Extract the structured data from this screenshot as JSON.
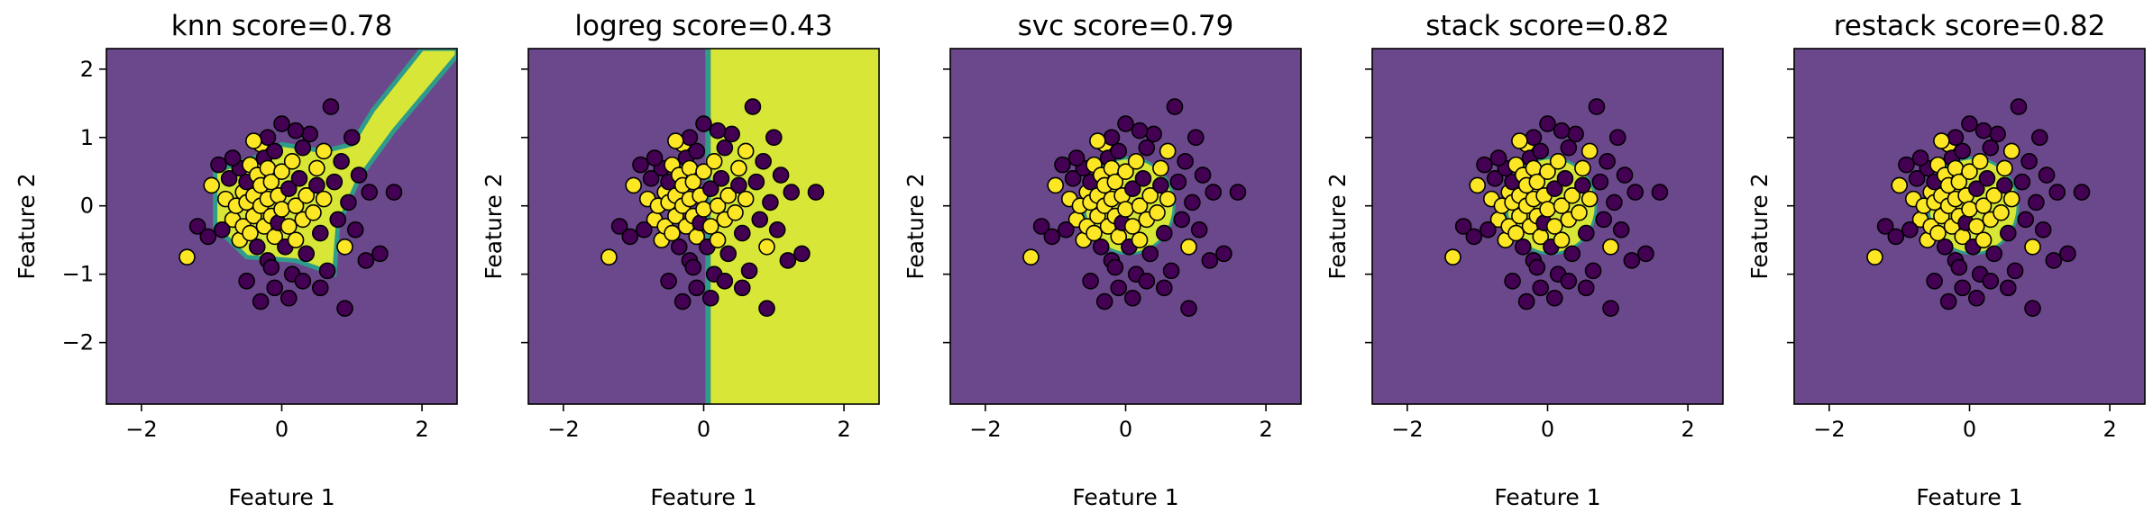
{
  "chart_data": {
    "type": "scatter",
    "colors": {
      "class_0": "#440154",
      "class_1": "#fde725",
      "region_0": "#6b478b",
      "region_1": "#d8e737",
      "boundary_mid": "#2f9b8a",
      "point_edge": "#000000"
    },
    "xlim": [
      -2.5,
      2.5
    ],
    "ylim": [
      -2.9,
      2.3
    ],
    "xticks": [
      -2,
      0,
      2
    ],
    "yticks": [
      -2,
      -1,
      0,
      1,
      2
    ],
    "points": [
      {
        "x": -1.35,
        "y": -0.75,
        "c": 1
      },
      {
        "x": -1.2,
        "y": -0.3,
        "c": 0
      },
      {
        "x": -1.05,
        "y": -0.45,
        "c": 0
      },
      {
        "x": -1.0,
        "y": 0.3,
        "c": 1
      },
      {
        "x": -0.9,
        "y": 0.6,
        "c": 0
      },
      {
        "x": -0.8,
        "y": 0.1,
        "c": 1
      },
      {
        "x": -0.75,
        "y": 0.4,
        "c": 0
      },
      {
        "x": -0.7,
        "y": -0.2,
        "c": 1
      },
      {
        "x": -0.65,
        "y": 0.0,
        "c": 1
      },
      {
        "x": -0.6,
        "y": 0.55,
        "c": 0
      },
      {
        "x": -0.6,
        "y": -0.5,
        "c": 1
      },
      {
        "x": -0.55,
        "y": 0.2,
        "c": 1
      },
      {
        "x": -0.55,
        "y": -0.3,
        "c": 1
      },
      {
        "x": -0.5,
        "y": 0.05,
        "c": 1
      },
      {
        "x": -0.5,
        "y": 0.35,
        "c": 0
      },
      {
        "x": -0.45,
        "y": -0.4,
        "c": 1
      },
      {
        "x": -0.45,
        "y": 0.6,
        "c": 1
      },
      {
        "x": -0.4,
        "y": 0.15,
        "c": 1
      },
      {
        "x": -0.4,
        "y": -0.15,
        "c": 1
      },
      {
        "x": -0.35,
        "y": 0.45,
        "c": 1
      },
      {
        "x": -0.35,
        "y": -0.6,
        "c": 0
      },
      {
        "x": -0.3,
        "y": 0.0,
        "c": 1
      },
      {
        "x": -0.3,
        "y": 0.3,
        "c": 1
      },
      {
        "x": -0.3,
        "y": 0.9,
        "c": 1
      },
      {
        "x": -0.25,
        "y": -0.3,
        "c": 1
      },
      {
        "x": -0.25,
        "y": 0.7,
        "c": 0
      },
      {
        "x": -0.2,
        "y": 0.55,
        "c": 1
      },
      {
        "x": -0.2,
        "y": 0.1,
        "c": 1
      },
      {
        "x": -0.2,
        "y": -0.8,
        "c": 0
      },
      {
        "x": -0.15,
        "y": -0.15,
        "c": 1
      },
      {
        "x": -0.15,
        "y": 0.35,
        "c": 1
      },
      {
        "x": -0.1,
        "y": 0.8,
        "c": 0
      },
      {
        "x": -0.1,
        "y": -0.45,
        "c": 1
      },
      {
        "x": -0.05,
        "y": 0.15,
        "c": 1
      },
      {
        "x": -0.05,
        "y": -0.25,
        "c": 0
      },
      {
        "x": 0.0,
        "y": 0.5,
        "c": 1
      },
      {
        "x": 0.0,
        "y": -0.05,
        "c": 1
      },
      {
        "x": 0.0,
        "y": 1.2,
        "c": 0
      },
      {
        "x": 0.05,
        "y": -0.6,
        "c": 0
      },
      {
        "x": 0.1,
        "y": 0.25,
        "c": 0
      },
      {
        "x": 0.1,
        "y": -0.3,
        "c": 1
      },
      {
        "x": 0.15,
        "y": 0.65,
        "c": 1
      },
      {
        "x": 0.15,
        "y": -1.0,
        "c": 0
      },
      {
        "x": 0.2,
        "y": 0.0,
        "c": 1
      },
      {
        "x": 0.2,
        "y": -0.5,
        "c": 1
      },
      {
        "x": 0.25,
        "y": 0.4,
        "c": 0
      },
      {
        "x": 0.3,
        "y": 0.85,
        "c": 0
      },
      {
        "x": 0.3,
        "y": -0.2,
        "c": 1
      },
      {
        "x": 0.35,
        "y": 0.15,
        "c": 1
      },
      {
        "x": 0.35,
        "y": -0.7,
        "c": 0
      },
      {
        "x": 0.4,
        "y": 1.05,
        "c": 0
      },
      {
        "x": 0.45,
        "y": -0.1,
        "c": 1
      },
      {
        "x": 0.5,
        "y": 0.55,
        "c": 1
      },
      {
        "x": 0.5,
        "y": 0.3,
        "c": 0
      },
      {
        "x": 0.55,
        "y": -0.4,
        "c": 0
      },
      {
        "x": 0.6,
        "y": 0.1,
        "c": 1
      },
      {
        "x": 0.6,
        "y": 0.8,
        "c": 1
      },
      {
        "x": 0.65,
        "y": -0.95,
        "c": 0
      },
      {
        "x": 0.7,
        "y": 1.45,
        "c": 0
      },
      {
        "x": 0.75,
        "y": 0.35,
        "c": 0
      },
      {
        "x": 0.8,
        "y": -0.2,
        "c": 0
      },
      {
        "x": 0.85,
        "y": 0.65,
        "c": 0
      },
      {
        "x": 0.9,
        "y": -0.6,
        "c": 1
      },
      {
        "x": 0.95,
        "y": 0.05,
        "c": 0
      },
      {
        "x": 1.0,
        "y": 1.0,
        "c": 0
      },
      {
        "x": 1.05,
        "y": -0.35,
        "c": 0
      },
      {
        "x": 1.1,
        "y": 0.45,
        "c": 0
      },
      {
        "x": 1.2,
        "y": -0.8,
        "c": 0
      },
      {
        "x": 1.25,
        "y": 0.2,
        "c": 0
      },
      {
        "x": 1.4,
        "y": -0.7,
        "c": 0
      },
      {
        "x": 1.6,
        "y": 0.2,
        "c": 0
      },
      {
        "x": 0.9,
        "y": -1.5,
        "c": 0
      },
      {
        "x": -0.3,
        "y": -1.4,
        "c": 0
      },
      {
        "x": 0.1,
        "y": -1.35,
        "c": 0
      },
      {
        "x": -0.5,
        "y": -1.1,
        "c": 0
      },
      {
        "x": 0.3,
        "y": -1.1,
        "c": 0
      },
      {
        "x": -0.1,
        "y": -1.2,
        "c": 0
      },
      {
        "x": 0.55,
        "y": -1.2,
        "c": 0
      },
      {
        "x": -0.2,
        "y": 1.0,
        "c": 0
      },
      {
        "x": -0.4,
        "y": 0.95,
        "c": 1
      },
      {
        "x": 0.2,
        "y": 1.1,
        "c": 0
      },
      {
        "x": -0.7,
        "y": 0.7,
        "c": 0
      },
      {
        "x": -0.85,
        "y": -0.35,
        "c": 0
      },
      {
        "x": -0.15,
        "y": -0.9,
        "c": 0
      }
    ],
    "panels": [
      {
        "title": "knn score=0.78",
        "xlabel": "Feature 1",
        "ylabel": "Feature 2",
        "boundary": "knn"
      },
      {
        "title": "logreg score=0.43",
        "xlabel": "Feature 1",
        "ylabel": "Feature 2",
        "boundary": "logreg"
      },
      {
        "title": "svc score=0.79",
        "xlabel": "Feature 1",
        "ylabel": "Feature 2",
        "boundary": "svc"
      },
      {
        "title": "stack score=0.82",
        "xlabel": "Feature 1",
        "ylabel": "Feature 2",
        "boundary": "stack"
      },
      {
        "title": "restack score=0.82",
        "xlabel": "Feature 1",
        "ylabel": "Feature 2",
        "boundary": "restack"
      }
    ]
  }
}
